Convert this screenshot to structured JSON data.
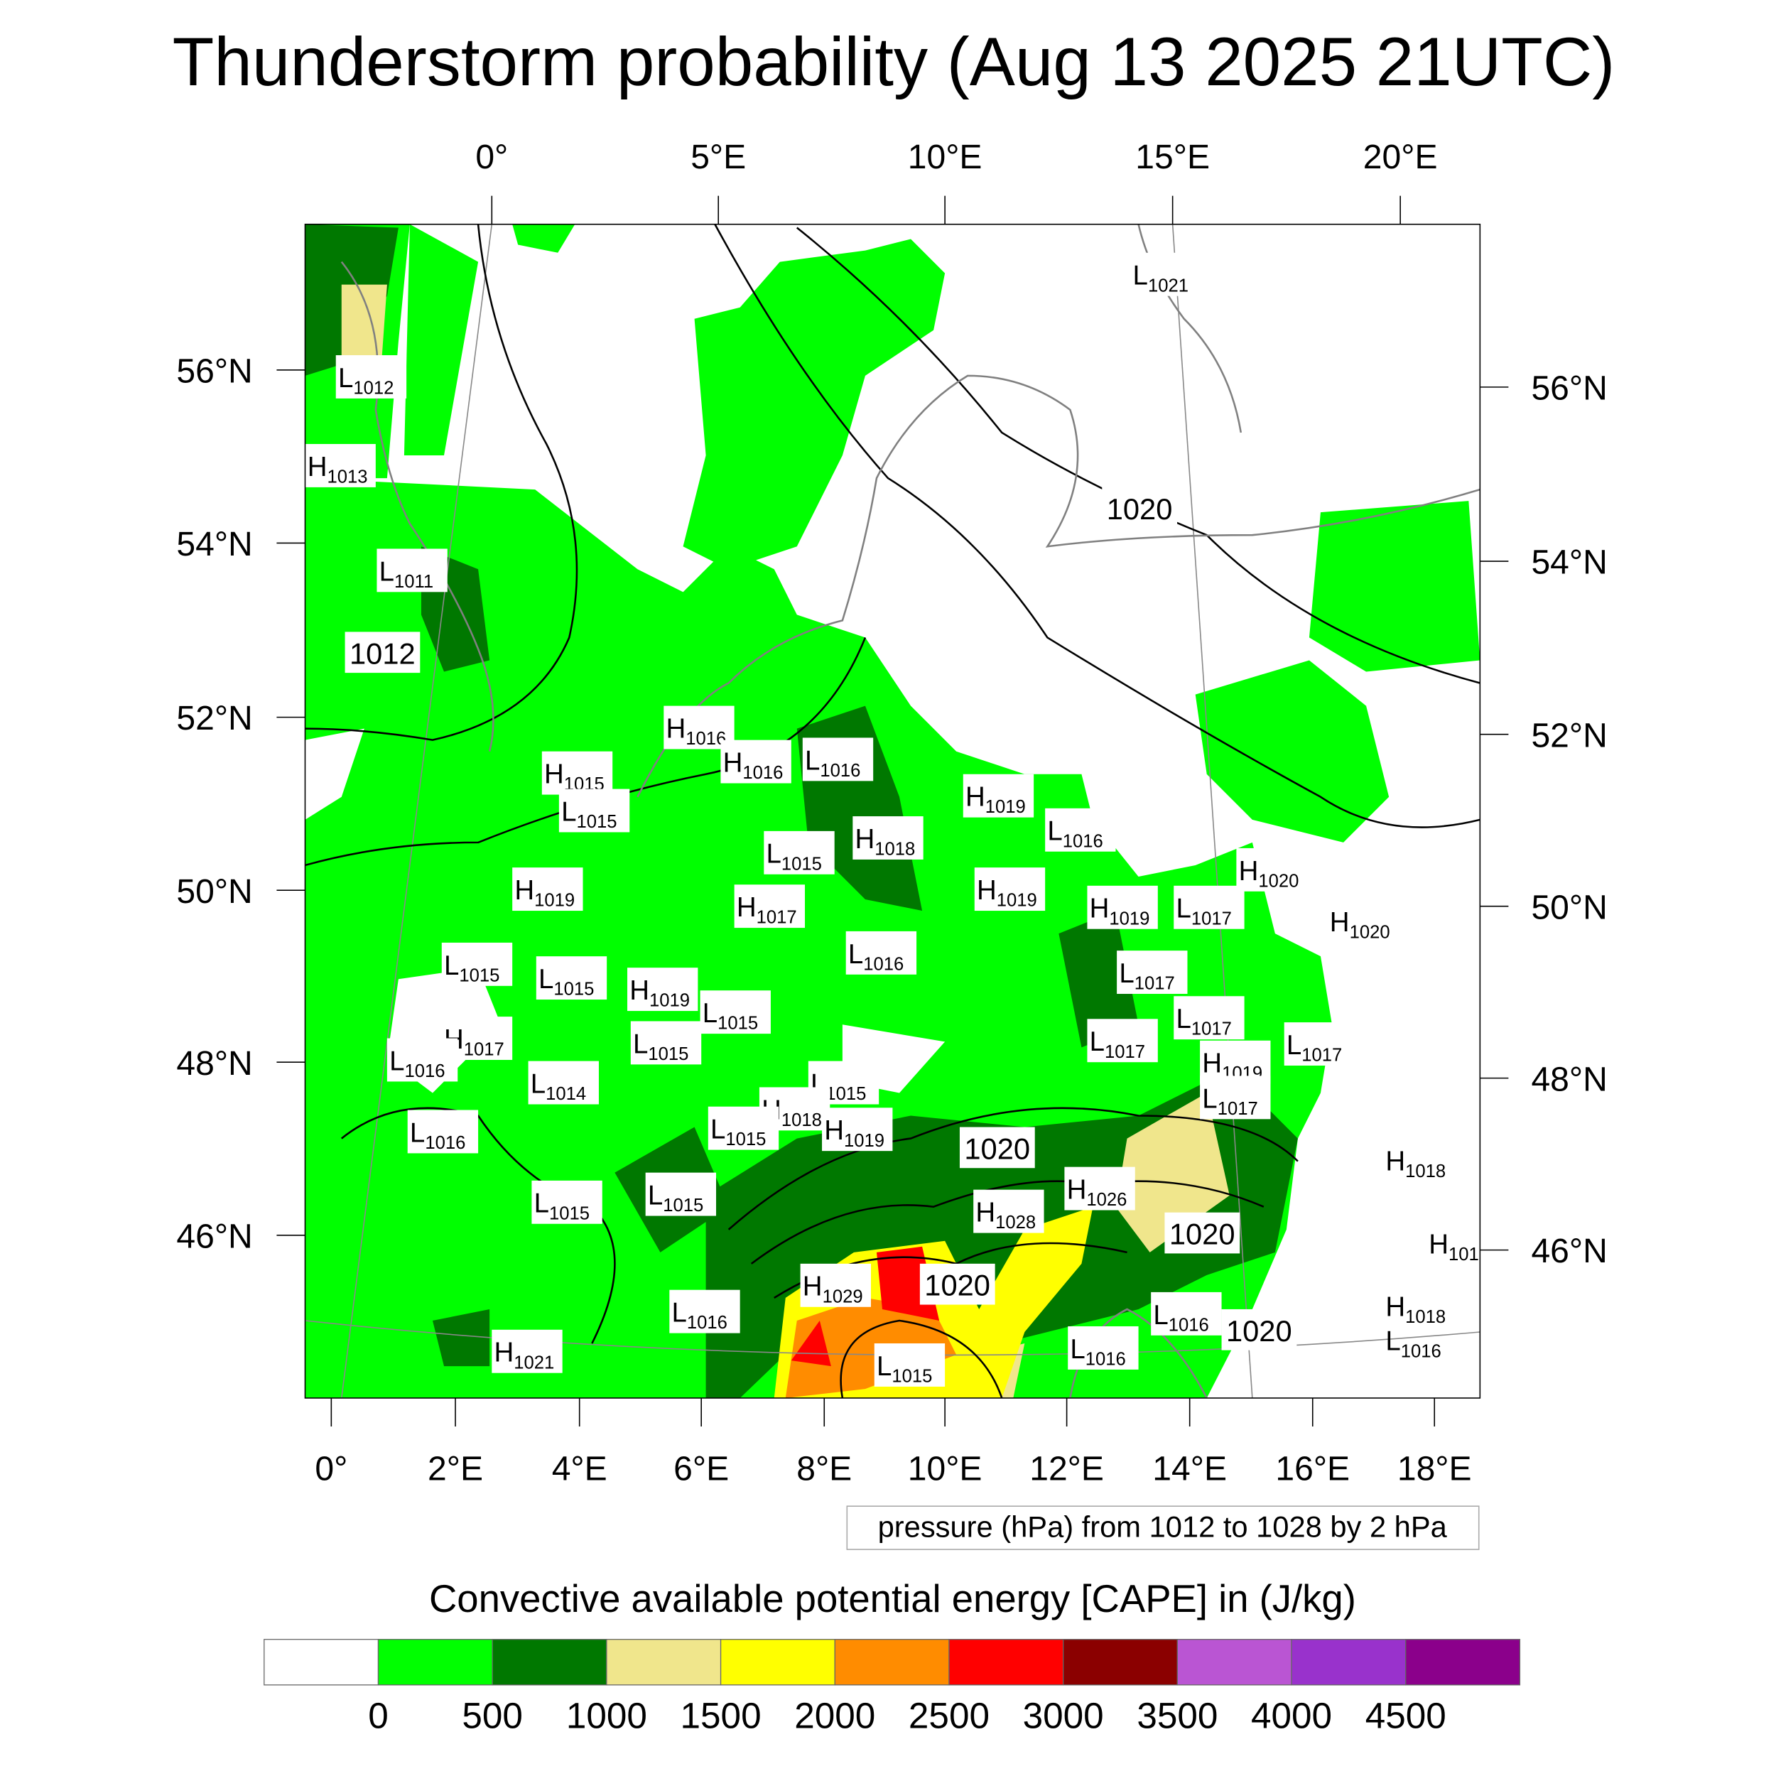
{
  "title": "Thunderstorm probability (Aug 13 2025 21UTC)",
  "axes": {
    "top_lon": [
      "0°",
      "5°E",
      "10°E",
      "15°E",
      "20°E"
    ],
    "bottom_lon": [
      "0°",
      "2°E",
      "4°E",
      "6°E",
      "8°E",
      "10°E",
      "12°E",
      "14°E",
      "16°E",
      "18°E"
    ],
    "left_lat": [
      "56°N",
      "54°N",
      "52°N",
      "50°N",
      "48°N",
      "46°N"
    ],
    "right_lat": [
      "56°N",
      "54°N",
      "52°N",
      "50°N",
      "48°N",
      "46°N"
    ]
  },
  "contour_info": "pressure (hPa) from 1012 to 1028 by 2 hPa",
  "colorbar": {
    "title": "Convective available potential energy [CAPE] in (J/kg)",
    "colors": [
      "#ffffff",
      "#00ff00",
      "#007800",
      "#f0e68c",
      "#ffff00",
      "#ff8c00",
      "#ff0000",
      "#8b0000",
      "#ba55d3",
      "#9932cc",
      "#8b008b"
    ],
    "labels": [
      "0",
      "500",
      "1000",
      "1500",
      "2000",
      "2500",
      "3000",
      "3500",
      "4000",
      "4500"
    ]
  },
  "pressure_labels": [
    {
      "t": "L",
      "v": "1012"
    },
    {
      "t": "H",
      "v": "1013"
    },
    {
      "t": "L",
      "v": "1011"
    },
    {
      "t": "",
      "v": "1012"
    },
    {
      "t": "H",
      "v": "1016"
    },
    {
      "t": "H",
      "v": "1015"
    },
    {
      "t": "L",
      "v": "1015"
    },
    {
      "t": "H",
      "v": "1016"
    },
    {
      "t": "L",
      "v": "1016"
    },
    {
      "t": "H",
      "v": "1019"
    },
    {
      "t": "L",
      "v": "1016"
    },
    {
      "t": "H",
      "v": "1018"
    },
    {
      "t": "L",
      "v": "1015"
    },
    {
      "t": "H",
      "v": "1019"
    },
    {
      "t": "H",
      "v": "1017"
    },
    {
      "t": "H",
      "v": "1019"
    },
    {
      "t": "H",
      "v": "1019"
    },
    {
      "t": "L",
      "v": "1017"
    },
    {
      "t": "H",
      "v": "1020"
    },
    {
      "t": "H",
      "v": "1020"
    },
    {
      "t": "",
      "v": "1020"
    },
    {
      "t": "L",
      "v": "1021"
    },
    {
      "t": "L",
      "v": "1016"
    },
    {
      "t": "L",
      "v": "1015"
    },
    {
      "t": "L",
      "v": "1015"
    },
    {
      "t": "H",
      "v": "1019"
    },
    {
      "t": "L",
      "v": "1015"
    },
    {
      "t": "L",
      "v": "1017"
    },
    {
      "t": "L",
      "v": "1017"
    },
    {
      "t": "H",
      "v": "1017"
    },
    {
      "t": "L",
      "v": "1015"
    },
    {
      "t": "L",
      "v": "1016"
    },
    {
      "t": "L",
      "v": "1014"
    },
    {
      "t": "L",
      "v": "1015"
    },
    {
      "t": "H",
      "v": "1019"
    },
    {
      "t": "L",
      "v": "1017"
    },
    {
      "t": "L",
      "v": "1017"
    },
    {
      "t": "L",
      "v": "1017"
    },
    {
      "t": "H",
      "v": "1018"
    },
    {
      "t": "H",
      "v": "1019"
    },
    {
      "t": "L",
      "v": "1015"
    },
    {
      "t": "L",
      "v": "1016"
    },
    {
      "t": "",
      "v": "1020"
    },
    {
      "t": "H",
      "v": "1026"
    },
    {
      "t": "H",
      "v": "1028"
    },
    {
      "t": "",
      "v": "1020"
    },
    {
      "t": "L",
      "v": "1015"
    },
    {
      "t": "L",
      "v": "1015"
    },
    {
      "t": "H",
      "v": "1018"
    },
    {
      "t": "H",
      "v": "101"
    },
    {
      "t": "H",
      "v": "1029"
    },
    {
      "t": "",
      "v": "1020"
    },
    {
      "t": "L",
      "v": "1016"
    },
    {
      "t": "L",
      "v": "1016"
    },
    {
      "t": "",
      "v": "1020"
    },
    {
      "t": "H",
      "v": "1018"
    },
    {
      "t": "L",
      "v": "1016"
    },
    {
      "t": "L",
      "v": "1016"
    },
    {
      "t": "H",
      "v": "1021"
    },
    {
      "t": "L",
      "v": "1015"
    }
  ]
}
